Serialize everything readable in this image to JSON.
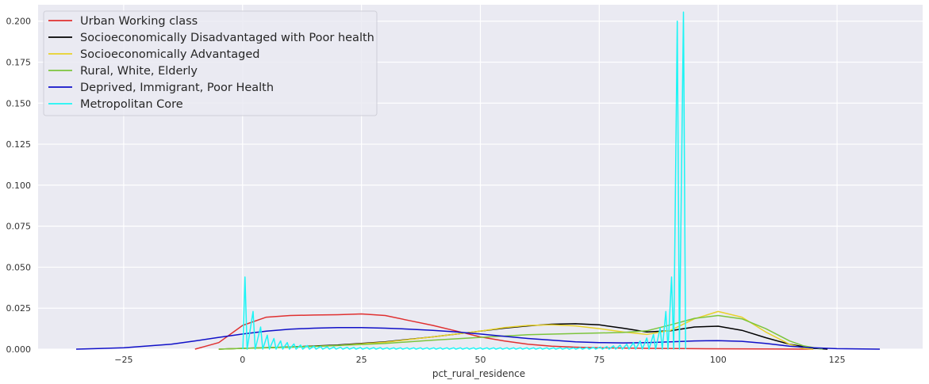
{
  "chart_data": {
    "type": "line",
    "title": "",
    "xlabel": "pct_rural_residence",
    "ylabel": "",
    "xlim": [
      -43,
      143
    ],
    "ylim": [
      0,
      0.21
    ],
    "x_ticks": [
      -25,
      0,
      25,
      50,
      75,
      100,
      125
    ],
    "x_tick_labels": [
      "−25",
      "0",
      "25",
      "50",
      "75",
      "100",
      "125"
    ],
    "y_ticks": [
      0,
      0.025,
      0.05,
      0.075,
      0.1,
      0.125,
      0.15,
      0.175,
      0.2
    ],
    "y_tick_labels": [
      "0.000",
      "0.025",
      "0.050",
      "0.075",
      "0.100",
      "0.125",
      "0.150",
      "0.175",
      "0.200"
    ],
    "grid": true,
    "legend_position": "top-left",
    "background": "#eaeaf2",
    "series": [
      {
        "name": "Urban Working class",
        "color": "#e03030",
        "points": [
          [
            -10,
            0
          ],
          [
            -5,
            0.004
          ],
          [
            0,
            0.0145
          ],
          [
            5,
            0.0195
          ],
          [
            10,
            0.0205
          ],
          [
            15,
            0.0208
          ],
          [
            20,
            0.021
          ],
          [
            25,
            0.0215
          ],
          [
            30,
            0.0205
          ],
          [
            35,
            0.0175
          ],
          [
            40,
            0.0145
          ],
          [
            45,
            0.011
          ],
          [
            50,
            0.0075
          ],
          [
            55,
            0.005
          ],
          [
            60,
            0.003
          ],
          [
            65,
            0.0018
          ],
          [
            70,
            0.0012
          ],
          [
            75,
            0.0008
          ],
          [
            85,
            0.0005
          ],
          [
            95,
            0.0003
          ],
          [
            110,
            0.0001
          ],
          [
            120,
            0
          ]
        ]
      },
      {
        "name": "Socioeconomically Disadvantaged with Poor health",
        "color": "#000000",
        "points": [
          [
            -5,
            0
          ],
          [
            0,
            0.0005
          ],
          [
            10,
            0.0013
          ],
          [
            20,
            0.0025
          ],
          [
            30,
            0.0045
          ],
          [
            40,
            0.0075
          ],
          [
            50,
            0.011
          ],
          [
            55,
            0.0128
          ],
          [
            60,
            0.0142
          ],
          [
            65,
            0.0152
          ],
          [
            70,
            0.0155
          ],
          [
            75,
            0.0148
          ],
          [
            80,
            0.0128
          ],
          [
            85,
            0.0105
          ],
          [
            90,
            0.0112
          ],
          [
            95,
            0.0135
          ],
          [
            100,
            0.014
          ],
          [
            105,
            0.0115
          ],
          [
            110,
            0.007
          ],
          [
            115,
            0.003
          ],
          [
            120,
            0.0005
          ],
          [
            123,
            0
          ]
        ]
      },
      {
        "name": "Socioeconomically Advantaged",
        "color": "#e8d22a",
        "points": [
          [
            -5,
            0
          ],
          [
            0,
            0.0005
          ],
          [
            10,
            0.0012
          ],
          [
            20,
            0.0022
          ],
          [
            30,
            0.0042
          ],
          [
            40,
            0.0075
          ],
          [
            50,
            0.011
          ],
          [
            55,
            0.0132
          ],
          [
            60,
            0.0145
          ],
          [
            65,
            0.0148
          ],
          [
            70,
            0.0142
          ],
          [
            75,
            0.0125
          ],
          [
            80,
            0.0105
          ],
          [
            85,
            0.009
          ],
          [
            90,
            0.0115
          ],
          [
            95,
            0.0185
          ],
          [
            100,
            0.023
          ],
          [
            105,
            0.0195
          ],
          [
            110,
            0.0105
          ],
          [
            115,
            0.003
          ],
          [
            118,
            0.0005
          ],
          [
            120,
            0
          ]
        ]
      },
      {
        "name": "Rural, White, Elderly",
        "color": "#7cc43c",
        "points": [
          [
            -5,
            0
          ],
          [
            0,
            0.0005
          ],
          [
            10,
            0.0012
          ],
          [
            20,
            0.0022
          ],
          [
            30,
            0.0035
          ],
          [
            40,
            0.0055
          ],
          [
            50,
            0.0072
          ],
          [
            60,
            0.0088
          ],
          [
            70,
            0.0095
          ],
          [
            80,
            0.0102
          ],
          [
            85,
            0.0112
          ],
          [
            90,
            0.0148
          ],
          [
            95,
            0.0188
          ],
          [
            100,
            0.0205
          ],
          [
            105,
            0.0185
          ],
          [
            110,
            0.0125
          ],
          [
            115,
            0.005
          ],
          [
            118,
            0.002
          ],
          [
            122,
            0
          ]
        ]
      },
      {
        "name": "Deprived, Immigrant, Poor Health",
        "color": "#1010c8",
        "points": [
          [
            -35,
            0
          ],
          [
            -25,
            0.0008
          ],
          [
            -15,
            0.003
          ],
          [
            -10,
            0.005
          ],
          [
            -5,
            0.0072
          ],
          [
            0,
            0.0092
          ],
          [
            5,
            0.011
          ],
          [
            10,
            0.0122
          ],
          [
            15,
            0.0128
          ],
          [
            20,
            0.0132
          ],
          [
            25,
            0.0132
          ],
          [
            30,
            0.0128
          ],
          [
            35,
            0.0122
          ],
          [
            40,
            0.0115
          ],
          [
            45,
            0.0105
          ],
          [
            50,
            0.0092
          ],
          [
            55,
            0.0078
          ],
          [
            60,
            0.0065
          ],
          [
            65,
            0.0055
          ],
          [
            70,
            0.0045
          ],
          [
            75,
            0.004
          ],
          [
            80,
            0.0038
          ],
          [
            85,
            0.004
          ],
          [
            90,
            0.0045
          ],
          [
            95,
            0.005
          ],
          [
            100,
            0.0052
          ],
          [
            105,
            0.0048
          ],
          [
            110,
            0.0035
          ],
          [
            115,
            0.0018
          ],
          [
            120,
            0.0008
          ],
          [
            125,
            0.0003
          ],
          [
            134,
            0
          ]
        ]
      },
      {
        "name": "Metropolitan Core",
        "color": "#1cf5f5",
        "spikes": [
          [
            0.5,
            0.044
          ],
          [
            2.2,
            0.023
          ],
          [
            3.8,
            0.0135
          ],
          [
            5.2,
            0.0085
          ],
          [
            6.6,
            0.0065
          ],
          [
            8.0,
            0.005
          ],
          [
            9.4,
            0.004
          ],
          [
            10.8,
            0.0032
          ],
          [
            12.2,
            0.0025
          ],
          [
            13.6,
            0.0022
          ],
          [
            15,
            0.0018
          ],
          [
            16.4,
            0.0016
          ],
          [
            17.8,
            0.0014
          ],
          [
            19.2,
            0.0013
          ],
          [
            20.6,
            0.0012
          ],
          [
            22,
            0.0011
          ],
          [
            23.4,
            0.001
          ],
          [
            24.8,
            0.001
          ],
          [
            26.2,
            0.0009
          ],
          [
            27.6,
            0.0009
          ],
          [
            29,
            0.0009
          ],
          [
            30.4,
            0.0008
          ],
          [
            31.8,
            0.0008
          ],
          [
            33.2,
            0.0008
          ],
          [
            34.6,
            0.0008
          ],
          [
            36,
            0.0008
          ],
          [
            37.4,
            0.0008
          ],
          [
            38.8,
            0.0008
          ],
          [
            40.2,
            0.0008
          ],
          [
            41.6,
            0.0008
          ],
          [
            43,
            0.0008
          ],
          [
            44.4,
            0.0008
          ],
          [
            45.8,
            0.0008
          ],
          [
            47.2,
            0.0008
          ],
          [
            48.6,
            0.0008
          ],
          [
            50,
            0.0008
          ],
          [
            51.4,
            0.0008
          ],
          [
            52.8,
            0.0008
          ],
          [
            54.2,
            0.0008
          ],
          [
            55.6,
            0.0008
          ],
          [
            57,
            0.0008
          ],
          [
            58.4,
            0.0008
          ],
          [
            59.8,
            0.0008
          ],
          [
            61.2,
            0.0008
          ],
          [
            62.6,
            0.0008
          ],
          [
            64,
            0.0008
          ],
          [
            65.4,
            0.0008
          ],
          [
            66.8,
            0.0008
          ],
          [
            68.2,
            0.0008
          ],
          [
            69.6,
            0.0008
          ],
          [
            71,
            0.0009
          ],
          [
            72.4,
            0.001
          ],
          [
            73.8,
            0.0011
          ],
          [
            75.2,
            0.0013
          ],
          [
            76.6,
            0.0016
          ],
          [
            78,
            0.002
          ],
          [
            79.4,
            0.0025
          ],
          [
            80.8,
            0.003
          ],
          [
            82.2,
            0.004
          ],
          [
            83.6,
            0.005
          ],
          [
            85,
            0.0068
          ],
          [
            86.4,
            0.009
          ],
          [
            87.8,
            0.013
          ],
          [
            89,
            0.023
          ],
          [
            90.2,
            0.044
          ],
          [
            91.4,
            0.2
          ],
          [
            92.7,
            0.2055
          ]
        ]
      }
    ]
  }
}
